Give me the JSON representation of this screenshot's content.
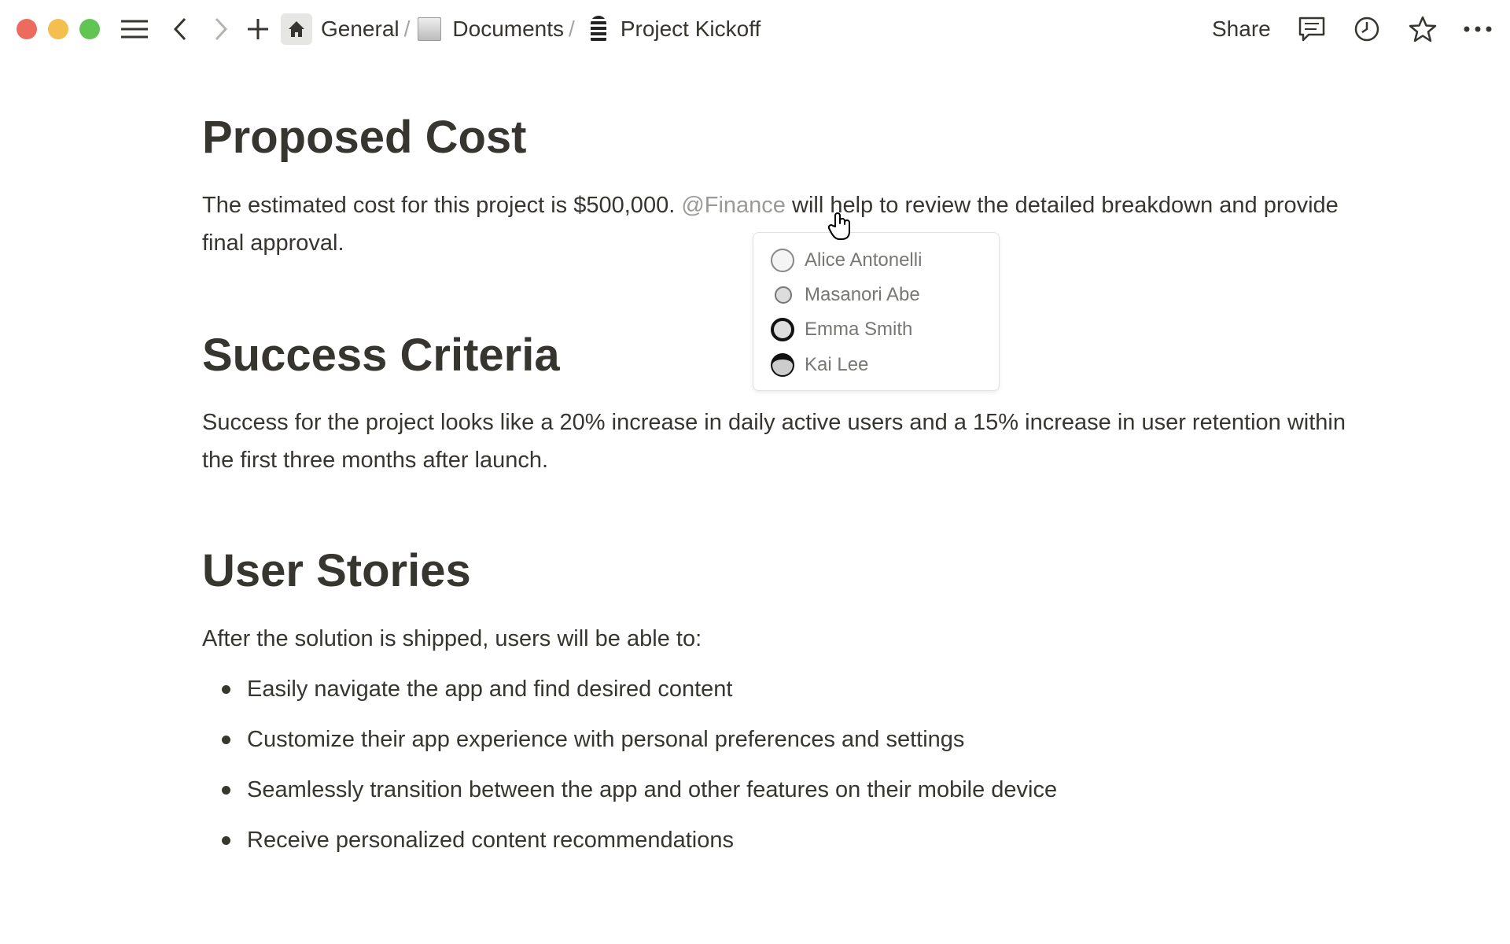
{
  "titlebar": {
    "breadcrumb": [
      {
        "label": "General",
        "icon": "home-icon"
      },
      {
        "label": "Documents",
        "icon": "scroll-icon"
      },
      {
        "label": "Project Kickoff",
        "icon": "microphone-icon"
      }
    ],
    "separator": "/",
    "share_label": "Share",
    "traffic_colors": [
      "#ec6a5e",
      "#f4bf4f",
      "#61c554"
    ]
  },
  "content": {
    "sections": [
      {
        "heading": "Proposed Cost",
        "text_before": "The estimated cost for this project is $500,000. ",
        "mention": "@Finance",
        "text_after": " will help to review the detailed breakdown and provide final approval."
      },
      {
        "heading": "Success Criteria",
        "text": "Success for the project looks like a 20% increase in daily active users and a 15% increase in user retention within the first three months after launch."
      },
      {
        "heading": "User Stories",
        "text": "After the solution is shipped, users will be able to:",
        "bullets": [
          "Easily navigate the app and find desired content",
          "Customize their app experience with personal preferences and settings",
          "Seamlessly transition between the app and other features on their mobile device",
          "Receive personalized content recommendations"
        ]
      }
    ]
  },
  "mention_popup": {
    "people": [
      "Alice Antonelli",
      "Masanori Abe",
      "Emma Smith",
      "Kai Lee"
    ]
  }
}
